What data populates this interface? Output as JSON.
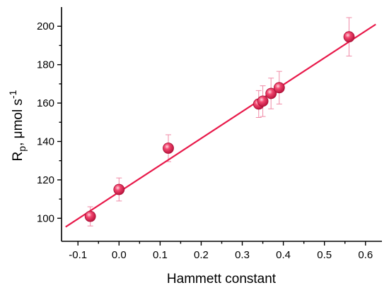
{
  "chart_data": {
    "type": "scatter",
    "title": "",
    "xlabel": "Hammett constant",
    "ylabel": {
      "main": "R",
      "subscript": "p",
      "rest": ", μmol s",
      "superscript": "-1"
    },
    "xlim": [
      -0.14,
      0.64
    ],
    "ylim": [
      88,
      210
    ],
    "xticks": [
      -0.1,
      0.0,
      0.1,
      0.2,
      0.3,
      0.4,
      0.5,
      0.6
    ],
    "xtick_labels": [
      "-0.1",
      "0.0",
      "0.1",
      "0.2",
      "0.3",
      "0.4",
      "0.5",
      "0.6"
    ],
    "yticks": [
      100,
      120,
      140,
      160,
      180,
      200
    ],
    "ytick_labels": [
      "100",
      "120",
      "140",
      "160",
      "180",
      "200"
    ],
    "grid": false,
    "legend": "none",
    "series": [
      {
        "kind": "points",
        "color": "#e8194a",
        "points": [
          {
            "x": -0.07,
            "y": 101,
            "err": 5
          },
          {
            "x": 0.0,
            "y": 115,
            "err": 6
          },
          {
            "x": 0.12,
            "y": 136.5,
            "err": 7
          },
          {
            "x": 0.34,
            "y": 159.5,
            "err": 7
          },
          {
            "x": 0.35,
            "y": 161,
            "err": 8
          },
          {
            "x": 0.37,
            "y": 165,
            "err": 8
          },
          {
            "x": 0.39,
            "y": 168,
            "err": 8.5
          },
          {
            "x": 0.56,
            "y": 194.5,
            "err": 10
          }
        ]
      },
      {
        "kind": "fit",
        "color": "#e8194a",
        "x": [
          -0.13,
          0.625
        ],
        "y": [
          95.5,
          201
        ]
      }
    ]
  }
}
